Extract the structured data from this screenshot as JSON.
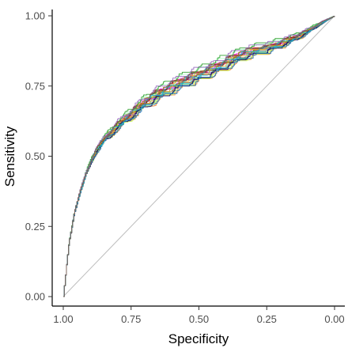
{
  "chart_data": {
    "type": "line",
    "xlabel": "Specificity",
    "ylabel": "Sensitivity",
    "x_reversed": true,
    "xlim": [
      1.0,
      0.0
    ],
    "ylim": [
      0.0,
      1.0
    ],
    "x_ticks": [
      1.0,
      0.75,
      0.5,
      0.25,
      0.0
    ],
    "x_tick_labels": [
      "1.00",
      "0.75",
      "0.50",
      "0.25",
      "0.00"
    ],
    "y_ticks": [
      0.0,
      0.25,
      0.5,
      0.75,
      1.0
    ],
    "y_tick_labels": [
      "0.00",
      "0.25",
      "0.50",
      "0.75",
      "1.00"
    ],
    "grid": false,
    "reference_line": {
      "x": [
        1.0,
        0.0
      ],
      "y": [
        0.0,
        1.0
      ],
      "color": "#bdbdbd"
    },
    "series_count": 20,
    "base_curve": {
      "x": [
        1.0,
        0.99,
        0.98,
        0.96,
        0.94,
        0.92,
        0.9,
        0.88,
        0.85,
        0.82,
        0.8,
        0.75,
        0.7,
        0.65,
        0.6,
        0.55,
        0.5,
        0.45,
        0.4,
        0.35,
        0.3,
        0.25,
        0.2,
        0.15,
        0.1,
        0.05,
        0.0
      ],
      "y": [
        0.0,
        0.1,
        0.19,
        0.3,
        0.37,
        0.43,
        0.48,
        0.52,
        0.56,
        0.59,
        0.61,
        0.65,
        0.69,
        0.72,
        0.745,
        0.765,
        0.785,
        0.805,
        0.83,
        0.855,
        0.87,
        0.88,
        0.9,
        0.92,
        0.945,
        0.975,
        1.0
      ]
    },
    "series_colors": [
      "#e6194b",
      "#3cb44b",
      "#4363d8",
      "#f58231",
      "#911eb4",
      "#42d4f4",
      "#f032e6",
      "#bfef45",
      "#469990",
      "#9a6324",
      "#800000",
      "#aaffc3",
      "#808000",
      "#000075",
      "#e6a817",
      "#1f77b4",
      "#2ca02c",
      "#9467bd",
      "#17becf",
      "#8c564b"
    ]
  }
}
